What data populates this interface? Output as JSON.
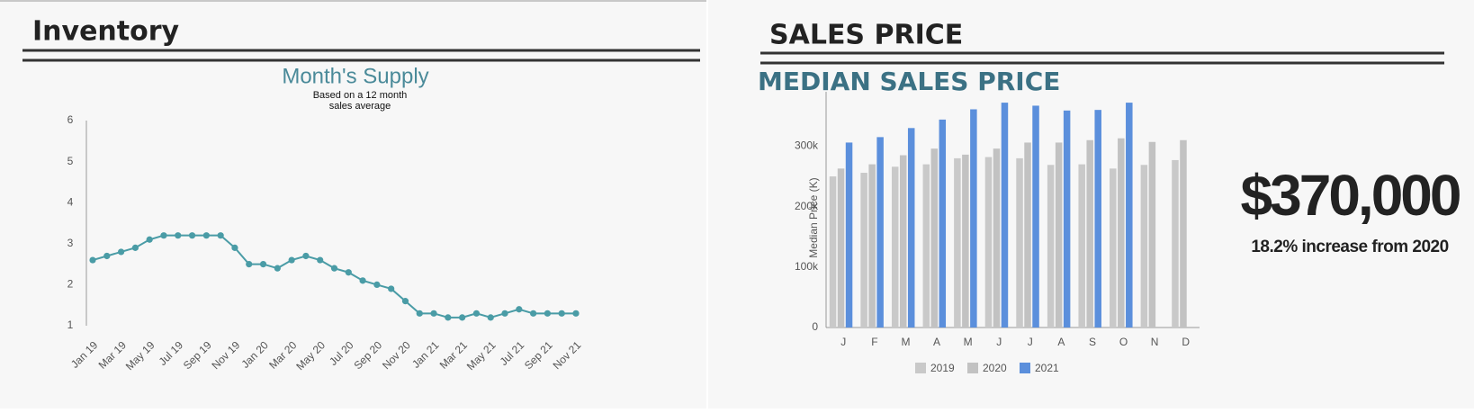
{
  "panels": [
    {
      "title": "Inventory"
    },
    {
      "title": "SALES PRICE"
    }
  ],
  "chart_data": [
    {
      "type": "line",
      "title": "Month's Supply",
      "subtitle": "Based on a 12 month sales average",
      "categories": [
        "Jan 19",
        null,
        "Mar 19",
        null,
        "May 19",
        null,
        "Jul 19",
        null,
        "Sep 19",
        null,
        "Nov 19",
        null,
        "Jan 20",
        null,
        "Mar 20",
        null,
        "May 20",
        null,
        "Jul 20",
        null,
        "Sep 20",
        null,
        "Nov 20",
        null,
        "Jan 21",
        null,
        "Mar 21",
        null,
        "May 21",
        null,
        "Jul 21",
        null,
        "Sep 21",
        null,
        "Nov 21"
      ],
      "values": [
        2.6,
        2.7,
        2.8,
        2.9,
        3.1,
        3.2,
        3.2,
        3.2,
        3.2,
        3.2,
        2.9,
        2.5,
        2.5,
        2.4,
        2.6,
        2.7,
        2.6,
        2.4,
        2.3,
        2.1,
        2.0,
        1.9,
        1.6,
        1.3,
        1.3,
        1.2,
        1.2,
        1.3,
        1.2,
        1.3,
        1.4,
        1.3,
        1.3,
        1.3,
        1.3
      ],
      "color": "#4a9ca6",
      "ylim": [
        1,
        6
      ],
      "yticks": [
        1,
        2,
        3,
        4,
        5,
        6
      ],
      "grid": false
    },
    {
      "type": "bar",
      "title": "MEDIAN SALES PRICE",
      "y_label": "Median Price (K)",
      "categories": [
        "J",
        "F",
        "M",
        "A",
        "M",
        "J",
        "J",
        "A",
        "S",
        "O",
        "N",
        "D"
      ],
      "series": [
        {
          "name": "2019",
          "color": "#c9c9c9",
          "values": [
            250000,
            256000,
            266000,
            270000,
            280000,
            282000,
            280000,
            269000,
            270000,
            263000,
            269000,
            277000
          ]
        },
        {
          "name": "2020",
          "color": "#c2c2c2",
          "values": [
            263000,
            270000,
            285000,
            296000,
            286000,
            296000,
            306000,
            306000,
            310000,
            313000,
            307000,
            310000
          ]
        },
        {
          "name": "2021",
          "color": "#5b8fdc",
          "values": [
            306000,
            315000,
            330000,
            344000,
            361000,
            372000,
            367000,
            359000,
            360000,
            372000,
            null,
            null
          ]
        }
      ],
      "ylim": [
        0,
        390000
      ],
      "yticks": [
        0,
        {
          "value": 100000,
          "label": "100k"
        },
        {
          "value": 200000,
          "label": "200k"
        },
        {
          "value": 300000,
          "label": "300k"
        }
      ],
      "grid": false,
      "legend": "bottom"
    }
  ],
  "kpi": {
    "value": "$370,000",
    "note": "18.2% increase from 2020"
  }
}
